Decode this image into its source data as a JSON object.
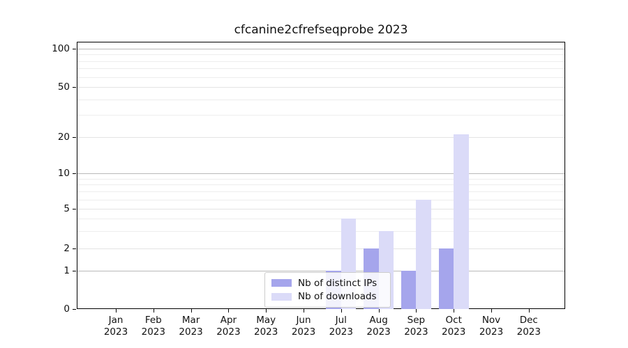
{
  "chart_data": {
    "type": "bar",
    "title": "cfcanine2cfrefseqprobe 2023",
    "categories": [
      "Jan",
      "Feb",
      "Mar",
      "Apr",
      "May",
      "Jun",
      "Jul",
      "Aug",
      "Sep",
      "Oct",
      "Nov",
      "Dec"
    ],
    "category_year": "2023",
    "series": [
      {
        "name": "Nb of distinct IPs",
        "color": "#a5a5ec",
        "values": [
          0,
          0,
          0,
          0,
          0,
          0,
          1,
          2,
          1,
          2,
          0,
          0
        ]
      },
      {
        "name": "Nb of downloads",
        "color": "#dbdbf8",
        "values": [
          0,
          0,
          0,
          0,
          0,
          0,
          4,
          3,
          6,
          21,
          0,
          0
        ]
      }
    ],
    "y_axis": {
      "scale": "symlog",
      "tick_values": [
        0,
        1,
        2,
        5,
        10,
        20,
        50,
        100
      ],
      "tick_labels": [
        "0",
        "1",
        "2",
        "5",
        "10",
        "20",
        "50",
        "100"
      ],
      "major_grid_values": [
        1,
        10,
        100
      ],
      "minor_grid_values": [
        3,
        4,
        6,
        7,
        8,
        9,
        30,
        40,
        60,
        70,
        80,
        90
      ],
      "ylim": [
        0,
        100
      ]
    },
    "x_axis": {
      "label_line2": "2023"
    },
    "legend": {
      "position": "lower center",
      "entries": [
        "Nb of distinct IPs",
        "Nb of downloads"
      ]
    },
    "grid": true,
    "background_color": "#ffffff"
  }
}
